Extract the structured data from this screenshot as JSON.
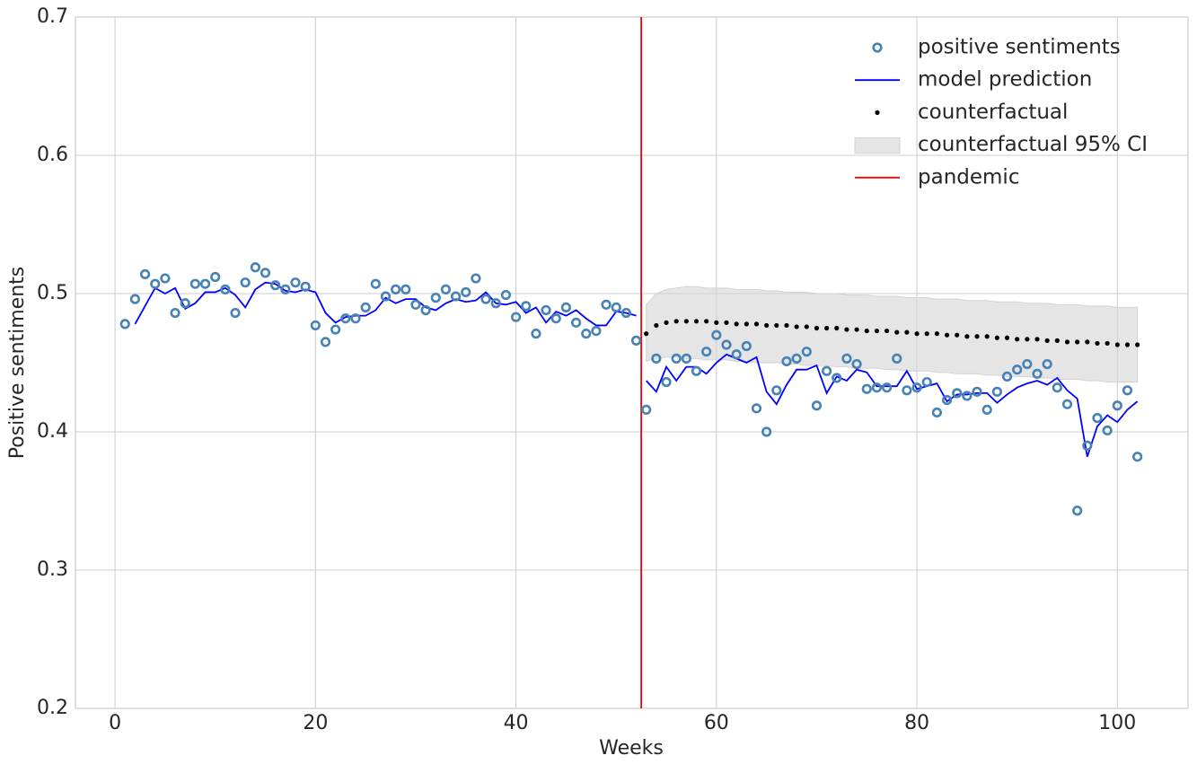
{
  "chart_data": {
    "type": "line",
    "xlabel": "Weeks",
    "ylabel": "Positive sentiments",
    "xlim": [
      -3.95,
      107.05
    ],
    "ylim": [
      0.2,
      0.7
    ],
    "xticks": [
      0,
      20,
      40,
      60,
      80,
      100
    ],
    "yticks": [
      0.2,
      0.3,
      0.4,
      0.5,
      0.6,
      0.7
    ],
    "grid": true,
    "legend": "upper right",
    "series": [
      {
        "name": "positive sentiments",
        "type": "scatter",
        "color": "#4682b4",
        "x": [
          1,
          2,
          3,
          4,
          5,
          6,
          7,
          8,
          9,
          10,
          11,
          12,
          13,
          14,
          15,
          16,
          17,
          18,
          19,
          20,
          21,
          22,
          23,
          24,
          25,
          26,
          27,
          28,
          29,
          30,
          31,
          32,
          33,
          34,
          35,
          36,
          37,
          38,
          39,
          40,
          41,
          42,
          43,
          44,
          45,
          46,
          47,
          48,
          49,
          50,
          51,
          52,
          53,
          54,
          55,
          56,
          57,
          58,
          59,
          60,
          61,
          62,
          63,
          64,
          65,
          66,
          67,
          68,
          69,
          70,
          71,
          72,
          73,
          74,
          75,
          76,
          77,
          78,
          79,
          80,
          81,
          82,
          83,
          84,
          85,
          86,
          87,
          88,
          89,
          90,
          91,
          92,
          93,
          94,
          95,
          96,
          97,
          98,
          99,
          100,
          101,
          102
        ],
        "values": [
          0.478,
          0.496,
          0.514,
          0.507,
          0.511,
          0.486,
          0.493,
          0.507,
          0.507,
          0.512,
          0.503,
          0.486,
          0.508,
          0.519,
          0.515,
          0.506,
          0.503,
          0.508,
          0.505,
          0.477,
          0.465,
          0.474,
          0.482,
          0.482,
          0.49,
          0.507,
          0.498,
          0.503,
          0.503,
          0.492,
          0.488,
          0.497,
          0.503,
          0.498,
          0.501,
          0.511,
          0.496,
          0.493,
          0.499,
          0.483,
          0.491,
          0.471,
          0.488,
          0.482,
          0.49,
          0.479,
          0.471,
          0.473,
          0.492,
          0.49,
          0.486,
          0.466,
          0.416,
          0.453,
          0.436,
          0.453,
          0.453,
          0.444,
          0.458,
          0.47,
          0.463,
          0.456,
          0.462,
          0.417,
          0.4,
          0.43,
          0.451,
          0.453,
          0.458,
          0.419,
          0.444,
          0.439,
          0.453,
          0.449,
          0.431,
          0.432,
          0.432,
          0.453,
          0.43,
          0.432,
          0.436,
          0.414,
          0.423,
          0.428,
          0.426,
          0.429,
          0.416,
          0.429,
          0.44,
          0.445,
          0.449,
          0.442,
          0.449,
          0.432,
          0.42,
          0.343,
          0.39,
          0.41,
          0.401,
          0.419,
          0.43,
          0.382
        ]
      },
      {
        "name": "model prediction",
        "type": "line",
        "color": "#0000ff",
        "x": [
          2,
          3,
          4,
          5,
          6,
          7,
          8,
          9,
          10,
          11,
          12,
          13,
          14,
          15,
          16,
          17,
          18,
          19,
          20,
          21,
          22,
          23,
          24,
          25,
          26,
          27,
          28,
          29,
          30,
          31,
          32,
          33,
          34,
          35,
          36,
          37,
          38,
          39,
          40,
          41,
          42,
          43,
          44,
          45,
          46,
          47,
          48,
          49,
          50,
          51,
          52,
          null,
          53,
          54,
          55,
          56,
          57,
          58,
          59,
          60,
          61,
          62,
          63,
          64,
          65,
          66,
          67,
          68,
          69,
          70,
          71,
          72,
          73,
          74,
          75,
          76,
          77,
          78,
          79,
          80,
          81,
          82,
          83,
          84,
          85,
          86,
          87,
          88,
          89,
          90,
          91,
          92,
          93,
          94,
          95,
          96,
          97,
          98,
          99,
          100,
          101,
          102
        ],
        "values": [
          0.478,
          0.491,
          0.504,
          0.5,
          0.504,
          0.489,
          0.493,
          0.501,
          0.501,
          0.504,
          0.499,
          0.49,
          0.503,
          0.508,
          0.507,
          0.502,
          0.501,
          0.503,
          0.501,
          0.486,
          0.479,
          0.483,
          0.484,
          0.484,
          0.488,
          0.497,
          0.493,
          0.496,
          0.496,
          0.49,
          0.488,
          0.493,
          0.496,
          0.494,
          0.495,
          0.501,
          0.493,
          0.492,
          0.494,
          0.486,
          0.49,
          0.479,
          0.487,
          0.484,
          0.488,
          0.482,
          0.477,
          0.477,
          0.487,
          0.486,
          0.484,
          null,
          0.437,
          0.429,
          0.447,
          0.437,
          0.447,
          0.447,
          0.442,
          0.45,
          0.456,
          0.453,
          0.45,
          0.454,
          0.429,
          0.42,
          0.434,
          0.445,
          0.445,
          0.448,
          0.428,
          0.44,
          0.437,
          0.445,
          0.443,
          0.433,
          0.433,
          0.433,
          0.444,
          0.431,
          0.433,
          0.435,
          0.422,
          0.427,
          0.427,
          0.428,
          0.428,
          0.421,
          0.427,
          0.432,
          0.435,
          0.437,
          0.434,
          0.439,
          0.43,
          0.424,
          0.382,
          0.404,
          0.412,
          0.407,
          0.416,
          0.422
        ]
      },
      {
        "name": "counterfactual",
        "type": "dots",
        "color": "#000000",
        "x": [
          53,
          54,
          55,
          56,
          57,
          58,
          59,
          60,
          61,
          62,
          63,
          64,
          65,
          66,
          67,
          68,
          69,
          70,
          71,
          72,
          73,
          74,
          75,
          76,
          77,
          78,
          79,
          80,
          81,
          82,
          83,
          84,
          85,
          86,
          87,
          88,
          89,
          90,
          91,
          92,
          93,
          94,
          95,
          96,
          97,
          98,
          99,
          100,
          101,
          102
        ],
        "values": [
          0.471,
          0.477,
          0.479,
          0.48,
          0.48,
          0.48,
          0.48,
          0.479,
          0.479,
          0.478,
          0.478,
          0.478,
          0.477,
          0.477,
          0.477,
          0.476,
          0.476,
          0.475,
          0.475,
          0.475,
          0.474,
          0.474,
          0.473,
          0.473,
          0.473,
          0.472,
          0.472,
          0.471,
          0.471,
          0.471,
          0.47,
          0.47,
          0.469,
          0.469,
          0.469,
          0.468,
          0.468,
          0.467,
          0.467,
          0.467,
          0.466,
          0.466,
          0.465,
          0.465,
          0.465,
          0.464,
          0.464,
          0.463,
          0.463,
          0.463
        ]
      },
      {
        "name": "counterfactual 95% CI",
        "type": "band",
        "color": "#d3d3d3",
        "x": [
          53,
          54,
          55,
          56,
          57,
          58,
          59,
          60,
          61,
          62,
          63,
          64,
          65,
          66,
          67,
          68,
          69,
          70,
          71,
          72,
          73,
          74,
          75,
          76,
          77,
          78,
          79,
          80,
          81,
          82,
          83,
          84,
          85,
          86,
          87,
          88,
          89,
          90,
          91,
          92,
          93,
          94,
          95,
          96,
          97,
          98,
          99,
          100,
          101,
          102
        ],
        "upper": [
          0.492,
          0.5,
          0.503,
          0.504,
          0.505,
          0.505,
          0.504,
          0.504,
          0.504,
          0.503,
          0.503,
          0.503,
          0.502,
          0.502,
          0.501,
          0.501,
          0.501,
          0.5,
          0.5,
          0.5,
          0.499,
          0.499,
          0.499,
          0.498,
          0.498,
          0.498,
          0.497,
          0.497,
          0.497,
          0.496,
          0.496,
          0.496,
          0.495,
          0.495,
          0.495,
          0.494,
          0.494,
          0.494,
          0.493,
          0.493,
          0.493,
          0.492,
          0.492,
          0.492,
          0.491,
          0.491,
          0.491,
          0.49,
          0.49,
          0.49
        ],
        "lower": [
          0.451,
          0.453,
          0.454,
          0.454,
          0.453,
          0.453,
          0.452,
          0.452,
          0.452,
          0.451,
          0.451,
          0.45,
          0.45,
          0.45,
          0.449,
          0.449,
          0.448,
          0.448,
          0.448,
          0.447,
          0.447,
          0.446,
          0.446,
          0.446,
          0.445,
          0.445,
          0.444,
          0.444,
          0.444,
          0.443,
          0.443,
          0.442,
          0.442,
          0.442,
          0.441,
          0.441,
          0.44,
          0.44,
          0.44,
          0.439,
          0.439,
          0.438,
          0.438,
          0.438,
          0.437,
          0.437,
          0.436,
          0.436,
          0.436,
          0.436
        ]
      },
      {
        "name": "pandemic",
        "type": "vline",
        "color": "#ff0000",
        "x": 52.5
      }
    ]
  }
}
